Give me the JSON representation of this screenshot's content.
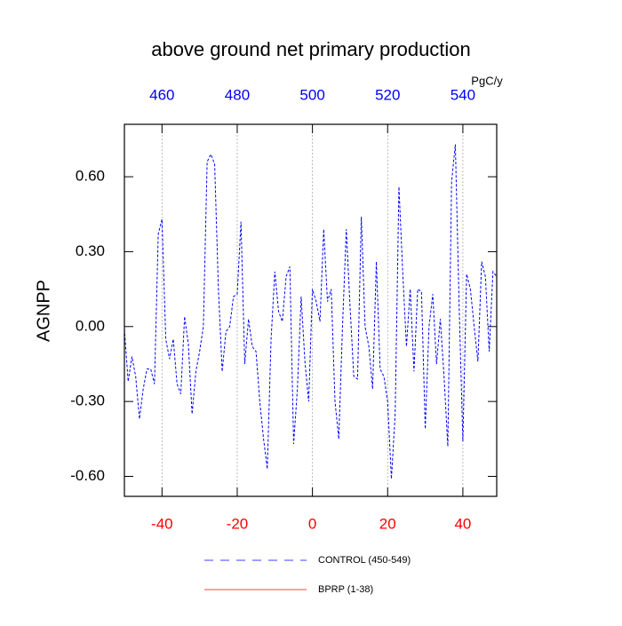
{
  "chart_data": {
    "type": "line",
    "title": "above ground net primary production",
    "ylabel": "AGNPP",
    "x2_unit_label": "PgC/y",
    "x": [
      -50,
      -49,
      -48,
      -47,
      -46,
      -45,
      -44,
      -43,
      -42,
      -41,
      -40,
      -39,
      -38,
      -37,
      -36,
      -35,
      -34,
      -33,
      -32,
      -31,
      -30,
      -29,
      -28,
      -27,
      -26,
      -25,
      -24,
      -23,
      -22,
      -21,
      -20,
      -19,
      -18,
      -17,
      -16,
      -15,
      -14,
      -13,
      -12,
      -11,
      -10,
      -9,
      -8,
      -7,
      -6,
      -5,
      -4,
      -3,
      -2,
      -1,
      0,
      1,
      2,
      3,
      4,
      5,
      6,
      7,
      8,
      9,
      10,
      11,
      12,
      13,
      14,
      15,
      16,
      17,
      18,
      19,
      20,
      21,
      22,
      23,
      24,
      25,
      26,
      27,
      28,
      29,
      30,
      31,
      32,
      33,
      34,
      35,
      36,
      37,
      38,
      39,
      40,
      41,
      42,
      43,
      44,
      45,
      46,
      47,
      48,
      49
    ],
    "series": [
      {
        "name": "CONTROL (450-549)",
        "color": "#0000ff",
        "dashed": true,
        "values": [
          -0.01,
          -0.22,
          -0.12,
          -0.2,
          -0.37,
          -0.25,
          -0.17,
          -0.17,
          -0.23,
          0.37,
          0.43,
          -0.05,
          -0.13,
          -0.05,
          -0.23,
          -0.27,
          0.04,
          -0.07,
          -0.35,
          -0.18,
          -0.1,
          0.0,
          0.66,
          0.69,
          0.65,
          0.15,
          -0.18,
          -0.02,
          0.0,
          0.12,
          0.13,
          0.42,
          -0.15,
          0.03,
          -0.08,
          -0.1,
          -0.3,
          -0.45,
          -0.57,
          -0.05,
          0.22,
          0.06,
          0.02,
          0.2,
          0.24,
          -0.47,
          -0.25,
          0.12,
          -0.14,
          -0.3,
          0.15,
          0.1,
          0.02,
          0.39,
          0.1,
          0.15,
          -0.3,
          -0.45,
          0.0,
          0.39,
          0.08,
          -0.2,
          -0.21,
          0.44,
          0.0,
          -0.08,
          -0.25,
          0.26,
          -0.17,
          -0.2,
          -0.3,
          -0.61,
          -0.35,
          0.56,
          0.22,
          -0.08,
          0.15,
          -0.18,
          0.15,
          0.14,
          -0.41,
          0.0,
          0.13,
          -0.15,
          0.03,
          -0.2,
          -0.48,
          0.58,
          0.73,
          0.09,
          -0.46,
          0.21,
          0.15,
          0.0,
          -0.14,
          0.26,
          0.2,
          -0.1,
          0.22,
          0.2
        ]
      },
      {
        "name": "BPRP (1-38)",
        "color": "#ff0000",
        "dashed": false,
        "values": [
          null,
          null,
          null,
          null,
          null,
          null,
          null,
          null,
          null,
          null,
          null,
          null,
          null,
          null,
          null,
          null,
          null,
          null,
          null,
          null,
          null,
          null,
          null,
          null,
          null,
          null,
          null,
          null,
          null,
          null,
          null,
          null,
          null,
          null,
          null,
          null,
          null,
          null,
          null,
          null,
          null,
          null,
          null,
          null,
          null,
          null,
          null,
          null,
          null,
          null,
          null,
          null,
          null,
          null,
          null,
          null,
          null,
          null,
          null,
          null,
          null,
          null,
          null,
          null,
          null,
          null,
          null,
          null,
          null,
          null,
          null,
          null,
          null,
          null,
          null,
          null,
          null,
          null,
          null,
          null,
          null,
          null,
          null,
          null,
          null,
          null,
          null,
          null,
          null,
          null,
          null,
          null,
          null,
          null,
          null,
          null,
          null,
          null,
          null,
          null
        ]
      }
    ],
    "xlim": [
      -50,
      49
    ],
    "xticks": [
      -40,
      -20,
      0,
      20,
      40
    ],
    "xtick_color": "#ff0000",
    "x2lim": [
      450,
      549
    ],
    "x2ticks": [
      460,
      480,
      500,
      520,
      540
    ],
    "x2tick_color": "#0000ff",
    "ylim": [
      -0.68,
      0.81
    ],
    "yticks": [
      {
        "value": -0.6,
        "label": "-0.60"
      },
      {
        "value": -0.3,
        "label": "-0.30"
      },
      {
        "value": 0,
        "label": "0.00"
      },
      {
        "value": 0.3,
        "label": "0.30"
      },
      {
        "value": 0.6,
        "label": "0.60"
      }
    ],
    "xgrid": true
  }
}
